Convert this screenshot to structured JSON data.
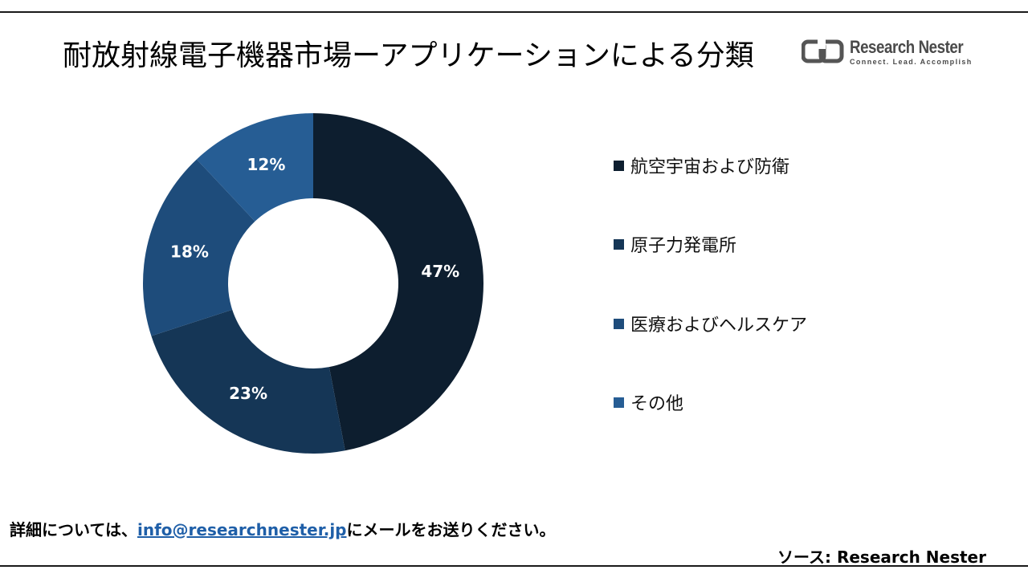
{
  "title": "耐放射線電子機器市場ーアプリケーションによる分類",
  "logo": {
    "name": "Research Nester",
    "tagline": "Connect. Lead. Accomplish"
  },
  "chart_data": {
    "type": "pie",
    "variant": "donut",
    "title": "",
    "categories": [
      "航空宇宙および防衛",
      "原子力発電所",
      "医療およびヘルスケア",
      "その他"
    ],
    "values": [
      47,
      23,
      18,
      12
    ],
    "value_labels": [
      "47%",
      "23%",
      "18%",
      "12%"
    ],
    "colors": [
      "#0d1e2f",
      "#153656",
      "#1e4c7b",
      "#265d94"
    ],
    "legend_position": "right"
  },
  "footer": {
    "prefix": "詳細については、",
    "email": "info@researchnester.jp",
    "suffix": "にメールをお送りください。"
  },
  "source": "ソース: Research Nester"
}
